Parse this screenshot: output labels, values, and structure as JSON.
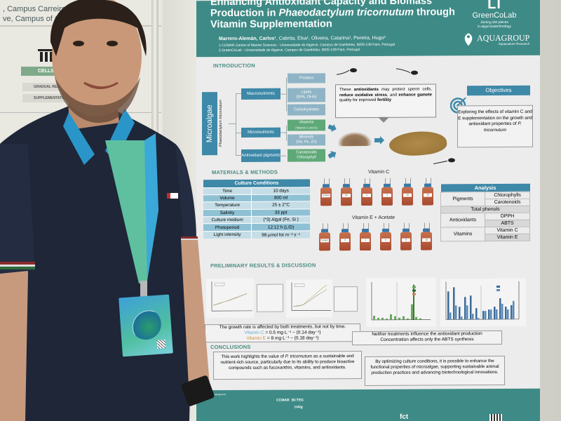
{
  "scene": {
    "description": "Researcher standing next to a scientific poster at a conference",
    "subject": {
      "clothing": "navy polo shirt with red-white-green collar trim",
      "lanyard_color": "#5fc0a0",
      "badge_colors": [
        "#3ea0d8",
        "#4fbfa0"
      ]
    }
  },
  "background_poster": {
    "affiliation_lines": [
      ", Campus Carreiros",
      "ve, Campus of Gamb"
    ],
    "cells_label": "CELLS AG",
    "chips": [
      "GRADUAL REDUCTION O",
      "SUPPLEMENTATION WITH GLU NITRATES"
    ]
  },
  "poster": {
    "colors": {
      "header": "#3e8a86",
      "accent_blue": "#3e88a8",
      "green": "#5fa878",
      "section_text": "#4a8a80"
    },
    "title_line1": "Enhancing Antioxidant Capacity and Biomass",
    "title_line2_pre": "Production in ",
    "title_line2_species": "Phaeodactylum tricornutum",
    "title_line2_post": " through",
    "title_line3": "Vitamin Supplementation",
    "authors_lead": "Marrero-Alemán, Carlos¹",
    "authors_rest": ", Cabrita, Elsa¹, Oliveira, Catarina¹, Pereira, Hugo²",
    "affiliation_1": "1 CCMAR Centre of Marine Sciences - Universidade do Algarve, Campus de Gambelas, 8005-139 Faro, Portugal",
    "affiliation_2": "2 GreenCoLab - Universidade do Algarve, Campus de Gambelas, 8005-139 Faro, Portugal",
    "logos": {
      "greencolab_mark": "Ll",
      "greencolab_name": "GreenCoLab",
      "greencolab_tagline_1": "Joining the pieces",
      "greencolab_tagline_2": "in algal biotechnology",
      "aquagroup_name": "AQUAGROUP",
      "aquagroup_sub": "Aquaculture Research"
    },
    "introduction": {
      "heading": "INTRODUCTION",
      "root": "Microalgae",
      "species": "Phaeodactylum tricornutum",
      "categories": [
        {
          "label": "Macronutrients",
          "items": [
            {
              "label": "Proteins"
            },
            {
              "label": "Lipids",
              "sub": "(EPA, DHA)"
            },
            {
              "label": "Carbohydrates"
            }
          ]
        },
        {
          "label": "Micronutrients",
          "items": [
            {
              "label": "Vitamins",
              "sub": "(Vitamin C and E)",
              "highlight": true
            },
            {
              "label": "Minerals",
              "sub": "(Se, Fe, Zn)"
            }
          ]
        },
        {
          "label": "Antioxidant pigments",
          "items": [
            {
              "label": "Carotenoids",
              "sub": "Chlorophyll",
              "highlight": true
            }
          ]
        }
      ],
      "callout": {
        "p1": "These ",
        "b1": "antioxidants",
        "p2": " may protect sperm cells, ",
        "b2": "reduce oxidative stress",
        "p3": ", and ",
        "b3": "enhance gamete",
        "p4": " quality for improved ",
        "b4": "fertility"
      }
    },
    "objectives": {
      "heading": "Objectives",
      "text_pre": "Exploring the effects of vitamin C and E supplementation on the growth and antioxidant properties of ",
      "text_species": "P. tricornutum"
    },
    "methods": {
      "heading": "MATERIALS & METHODS",
      "culture_table": {
        "title": "Culture Conditions",
        "rows": [
          [
            "Time",
            "10 days"
          ],
          [
            "Volume",
            "800 ml"
          ],
          [
            "Temperature",
            "25 ± 2°C"
          ],
          [
            "Salinity",
            "33 ppt"
          ],
          [
            "Culture medium",
            "(*3) Algal (Fe, Si )"
          ],
          [
            "Photoperiod",
            "12:12 h (L/D)"
          ],
          [
            "Light intensity",
            "98 µmol fot m⁻² s⁻¹"
          ]
        ]
      },
      "vitamin_c_label": "Vitamin C",
      "vitamin_c_bottles": [
        "Control",
        "0.5",
        "2",
        "5",
        "10",
        "20"
      ],
      "vitamin_e_label": "Vitamin E + Acetate",
      "vitamin_e_bottles": [
        "Control",
        "2",
        "4",
        "6",
        "8",
        "10"
      ],
      "analysis_table": {
        "title": "Analysis",
        "groups": [
          {
            "name": "Pigments",
            "items": [
              "Chlorophylls",
              "Carotenoids"
            ]
          },
          {
            "name": "Total phenols",
            "items": []
          },
          {
            "name": "Antioxidants",
            "items": [
              "DPPH",
              "ABTS"
            ]
          },
          {
            "name": "Vitamins",
            "items": [
              "Vitamin C",
              "Vitamin E"
            ]
          }
        ]
      }
    },
    "results": {
      "heading": "PRELIMINARY RESULTS & DISCUSSION",
      "growth_charts": [
        {
          "title": "Vitamin C",
          "xlabel": "Time (days)",
          "ylabel": "Optical Density (OD)"
        },
        {
          "title": "Vitamin E / Acetate",
          "xlabel": "Time (days)",
          "ylabel": "Optical Density (OD)"
        }
      ],
      "pigment_chart": {
        "title_left": "Vitamin C",
        "title_right": "Vitamin E",
        "xlabel": "Concentration",
        "ylabel": "Pigment content (mg/g DW)",
        "legend": [
          "Chlorophyll a",
          "Chlorophyll b",
          "Carotenoids"
        ],
        "categories": [
          "C",
          "0.5",
          "2",
          "5",
          "10",
          "20",
          "C",
          "2",
          "4",
          "6",
          "8",
          "10"
        ]
      },
      "antioxidant_chart": {
        "title_left": "Vitamin C",
        "title_right": "Vitamin E",
        "xlabel": "Concentration",
        "ylabel": "ABTS (mg Trolox/g)",
        "ylabel_right": "DPPH (mg Trolox/g)",
        "legend": [
          "ABTS",
          "DPPH"
        ],
        "categories": [
          "C",
          "0.5",
          "2",
          "5",
          "10",
          "20",
          "C",
          "2",
          "4",
          "6",
          "8",
          "10"
        ]
      },
      "growth_statement": "The growth rate is affected by both treatments, but not by time.",
      "vitc_rate_label": "Vitamin C",
      "vitc_rate_value": " = 0.5 mg·L⁻¹ ~ (0.14 day⁻¹)",
      "vite_rate_label": "Vitamin E",
      "vite_rate_value": " = 8 mg·L⁻¹ ~ (0.18 day⁻¹)",
      "antioxidant_statement_1": "Neither treatments influence the antioxidant production",
      "antioxidant_statement_2": "Concentration affects only the ABTS synthesis"
    },
    "conclusions": {
      "heading": "CONCLUSIONS",
      "text1_pre": "This work highlights the value of ",
      "text1_species": "P. tricornutum",
      "text1_post": " as a sustainable and nutrient-rich source, particularly due to its ability to produce bioactive compounds such as fucoxanthin, vitamins, and antioxidants.",
      "text2": "By optimizing culture conditions, it is possible to enhance the functional properties of microalgae, supporting sustainable animal production practices and advancing biotechnological innovations."
    },
    "footer": {
      "ack_heading": "Acknowledgments",
      "logos": [
        "CCMAR",
        "BI-TEG",
        "UAlg",
        "fct"
      ]
    }
  }
}
